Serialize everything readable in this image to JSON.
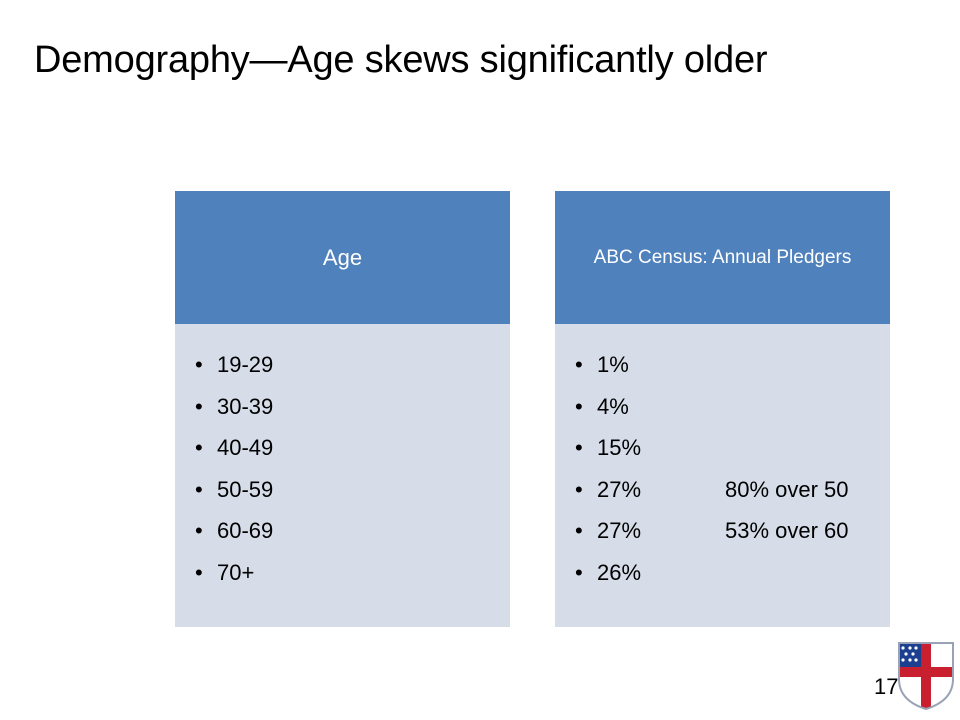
{
  "title": "Demography—Age skews significantly older",
  "left_card": {
    "header": "Age",
    "items": [
      "19-29",
      "30-39",
      "40-49",
      "50-59",
      "60-69",
      "70+"
    ]
  },
  "right_card": {
    "header": "ABC Census: Annual Pledgers",
    "items": [
      {
        "value": "1%",
        "note": ""
      },
      {
        "value": "4%",
        "note": ""
      },
      {
        "value": "15%",
        "note": ""
      },
      {
        "value": "27%",
        "note": "80% over 50"
      },
      {
        "value": "27%",
        "note": "53% over 60"
      },
      {
        "value": "26%",
        "note": ""
      }
    ]
  },
  "bullet_glyph": "•",
  "page_number": "17",
  "colors": {
    "header_blue": "#4f81bd",
    "body_light": "#d6dde9",
    "seal_red": "#c8202f",
    "seal_blue": "#1d3f8f"
  },
  "icons": {
    "seal": "episcopal-shield-icon"
  }
}
